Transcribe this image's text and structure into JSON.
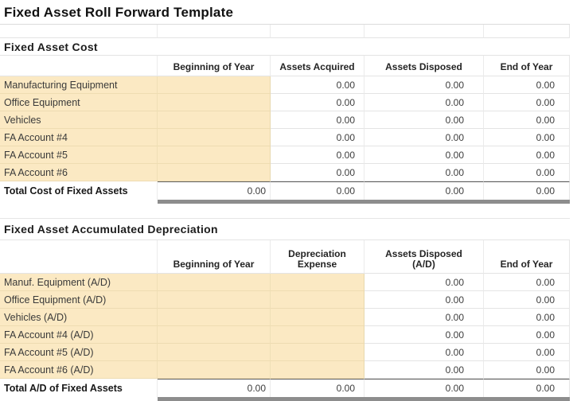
{
  "title": "Fixed Asset Roll Forward Template",
  "colors": {
    "input_cell": "#FBE9C3",
    "total_bar": "#8D8D8D",
    "grid_line": "#E4E4E4"
  },
  "section1": {
    "heading": "Fixed Asset Cost",
    "headers": {
      "c2": "Beginning of Year",
      "c3": "Assets Acquired",
      "c4": "Assets Disposed",
      "c5": "End of Year"
    },
    "rows": [
      {
        "label": "Manufacturing Equipment",
        "acquired": "0.00",
        "disposed": "0.00",
        "end": "0.00"
      },
      {
        "label": "Office Equipment",
        "acquired": "0.00",
        "disposed": "0.00",
        "end": "0.00"
      },
      {
        "label": "Vehicles",
        "acquired": "0.00",
        "disposed": "0.00",
        "end": "0.00"
      },
      {
        "label": "FA Account #4",
        "acquired": "0.00",
        "disposed": "0.00",
        "end": "0.00"
      },
      {
        "label": "FA Account #5",
        "acquired": "0.00",
        "disposed": "0.00",
        "end": "0.00"
      },
      {
        "label": "FA Account #6",
        "acquired": "0.00",
        "disposed": "0.00",
        "end": "0.00"
      }
    ],
    "total": {
      "label": "Total Cost of Fixed Assets",
      "boy": "0.00",
      "acquired": "0.00",
      "disposed": "0.00",
      "end": "0.00"
    }
  },
  "section2": {
    "heading": "Fixed Asset Accumulated Depreciation",
    "headers": {
      "c2": "Beginning of Year",
      "c3": "Depreciation\nExpense",
      "c4": "Assets Disposed\n(A/D)",
      "c5": "End of Year"
    },
    "rows": [
      {
        "label": "Manuf. Equipment (A/D)",
        "disposed": "0.00",
        "end": "0.00"
      },
      {
        "label": "Office Equipment (A/D)",
        "disposed": "0.00",
        "end": "0.00"
      },
      {
        "label": "Vehicles (A/D)",
        "disposed": "0.00",
        "end": "0.00"
      },
      {
        "label": "FA Account #4 (A/D)",
        "disposed": "0.00",
        "end": "0.00"
      },
      {
        "label": "FA Account #5 (A/D)",
        "disposed": "0.00",
        "end": "0.00"
      },
      {
        "label": "FA Account #6 (A/D)",
        "disposed": "0.00",
        "end": "0.00"
      }
    ],
    "total": {
      "label": "Total A/D of Fixed Assets",
      "boy": "0.00",
      "expense": "0.00",
      "disposed": "0.00",
      "end": "0.00"
    }
  }
}
